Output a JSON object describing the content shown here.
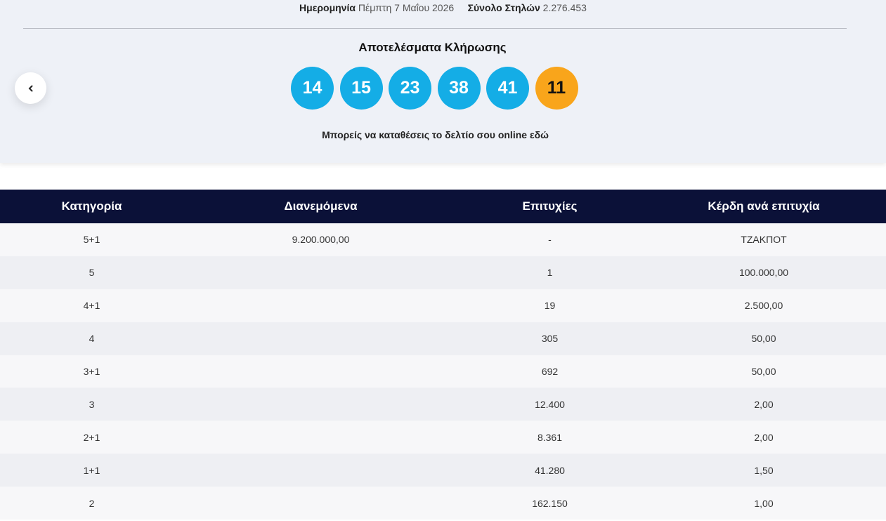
{
  "header": {
    "date_label": "Ημερομηνία",
    "date": "Πέμπτη 7 Μαΐου 2026",
    "total_label": "Σύνολο Στηλών",
    "total": "2.276.453"
  },
  "results": {
    "title": "Αποτελέσματα Κλήρωσης",
    "balls": [
      14,
      15,
      23,
      38,
      41
    ],
    "bonus": 11,
    "online_text": "Μπορείς να καταθέσεις το δελτίο σου online εδώ"
  },
  "table": {
    "headers": [
      "Κατηγορία",
      "Διανεμόμενα",
      "Επιτυχίες",
      "Κέρδη ανά επιτυχία"
    ],
    "rows": [
      [
        "5+1",
        "9.200.000,00",
        "-",
        "ΤΖΑΚΠΟΤ"
      ],
      [
        "5",
        null,
        "1",
        "100.000,00"
      ],
      [
        "4+1",
        null,
        "19",
        "2.500,00"
      ],
      [
        "4",
        null,
        "305",
        "50,00"
      ],
      [
        "3+1",
        null,
        "692",
        "50,00"
      ],
      [
        "3",
        null,
        "12.400",
        "2,00"
      ],
      [
        "2+1",
        null,
        "8.361",
        "2,00"
      ],
      [
        "1+1",
        null,
        "41.280",
        "1,50"
      ],
      [
        "2",
        null,
        "162.150",
        "1,00"
      ]
    ]
  }
}
